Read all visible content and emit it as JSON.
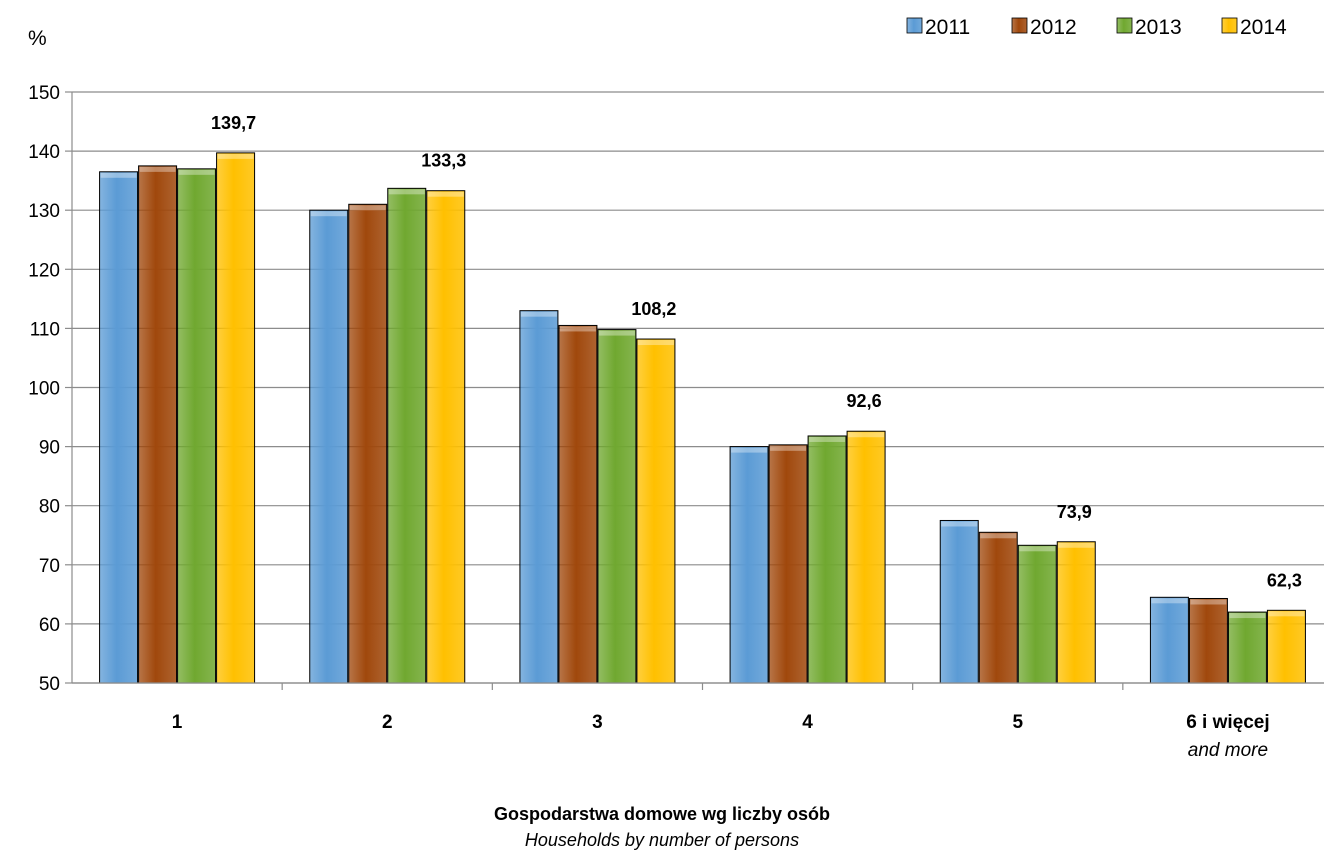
{
  "chart_data": {
    "type": "bar",
    "unit_label": "%",
    "categories": [
      "1",
      "2",
      "3",
      "4",
      "5",
      "6 i więcej"
    ],
    "category_sublabels": [
      "",
      "",
      "",
      "",
      "",
      "and more"
    ],
    "series": [
      {
        "name": "2011",
        "color": "#5b9bd5",
        "values": [
          136.5,
          130.0,
          113.0,
          90.0,
          77.5,
          64.5
        ]
      },
      {
        "name": "2012",
        "color": "#a0480c",
        "values": [
          137.5,
          131.0,
          110.5,
          90.3,
          75.5,
          64.3
        ]
      },
      {
        "name": "2013",
        "color": "#70a830",
        "values": [
          137.0,
          133.7,
          109.8,
          91.8,
          73.3,
          62.0
        ]
      },
      {
        "name": "2014",
        "color": "#ffc000",
        "values": [
          139.7,
          133.3,
          108.2,
          92.6,
          73.9,
          62.3
        ]
      }
    ],
    "data_labels": [
      "139,7",
      "133,3",
      "108,2",
      "92,6",
      "73,9",
      "62,3"
    ],
    "ylim": [
      50,
      150
    ],
    "yticks": [
      50,
      60,
      70,
      80,
      90,
      100,
      110,
      120,
      130,
      140,
      150
    ],
    "grid": true,
    "legend_position": "top-right",
    "xlabel": "Gospodarstwa domowe wg liczby  osób",
    "xlabel_en": "Households by number of persons"
  }
}
